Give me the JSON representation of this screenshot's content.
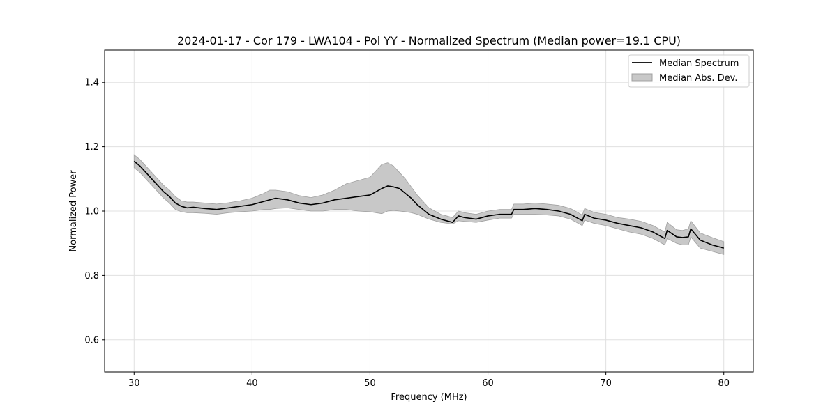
{
  "chart_data": {
    "type": "line",
    "title": "2024-01-17 - Cor 179 - LWA104 - Pol YY - Normalized Spectrum (Median power=19.1 CPU)",
    "xlabel": "Frequency (MHz)",
    "ylabel": "Normalized Power",
    "xlim": [
      27.5,
      82.5
    ],
    "ylim": [
      0.5,
      1.5
    ],
    "grid": true,
    "legend_position": "top-right",
    "x_ticks": [
      30,
      40,
      50,
      60,
      70,
      80
    ],
    "x_tick_labels": [
      "30",
      "40",
      "50",
      "60",
      "70",
      "80"
    ],
    "y_ticks": [
      0.6,
      0.8,
      1.0,
      1.2,
      1.4
    ],
    "y_tick_labels": [
      "0.6",
      "0.8",
      "1.0",
      "1.2",
      "1.4"
    ],
    "colors": {
      "median": "#000000",
      "band_fill": "#c8c8c8",
      "band_edge": "#a0a0a0",
      "grid": "#e0e0e0"
    },
    "series": [
      {
        "name": "Median Spectrum",
        "kind": "line",
        "x": [
          30,
          30.5,
          31,
          31.5,
          32,
          32.5,
          33,
          33.5,
          34,
          34.5,
          35,
          36,
          37,
          38,
          39,
          40,
          41,
          41.5,
          42,
          43,
          44,
          45,
          46,
          47,
          48,
          49,
          50,
          50.5,
          51,
          51.5,
          52,
          52.5,
          53,
          53.5,
          54,
          55,
          56,
          57,
          57.5,
          58,
          59,
          60,
          61,
          62,
          62.2,
          63,
          64,
          65,
          66,
          67,
          68,
          68.2,
          69,
          70,
          71,
          72,
          73,
          74,
          75,
          75.2,
          76,
          76.5,
          77,
          77.2,
          78,
          79,
          80
        ],
        "values": [
          1.155,
          1.14,
          1.12,
          1.1,
          1.08,
          1.06,
          1.045,
          1.025,
          1.015,
          1.01,
          1.012,
          1.008,
          1.005,
          1.01,
          1.015,
          1.02,
          1.03,
          1.035,
          1.04,
          1.035,
          1.025,
          1.02,
          1.025,
          1.035,
          1.04,
          1.045,
          1.05,
          1.06,
          1.07,
          1.078,
          1.075,
          1.07,
          1.055,
          1.04,
          1.02,
          0.99,
          0.975,
          0.965,
          0.985,
          0.98,
          0.975,
          0.985,
          0.99,
          0.99,
          1.005,
          1.005,
          1.008,
          1.005,
          1.0,
          0.99,
          0.97,
          0.99,
          0.978,
          0.972,
          0.962,
          0.955,
          0.948,
          0.935,
          0.915,
          0.94,
          0.92,
          0.918,
          0.92,
          0.945,
          0.91,
          0.895,
          0.885
        ]
      },
      {
        "name": "Median Abs. Dev.",
        "kind": "band",
        "x": [
          30,
          30.5,
          31,
          31.5,
          32,
          32.5,
          33,
          33.5,
          34,
          34.5,
          35,
          36,
          37,
          38,
          39,
          40,
          41,
          41.5,
          42,
          43,
          44,
          45,
          46,
          47,
          48,
          49,
          50,
          50.5,
          51,
          51.5,
          52,
          52.5,
          53,
          53.5,
          54,
          55,
          56,
          57,
          57.5,
          58,
          59,
          60,
          61,
          62,
          62.2,
          63,
          64,
          65,
          66,
          67,
          68,
          68.2,
          69,
          70,
          71,
          72,
          73,
          74,
          75,
          75.2,
          76,
          76.5,
          77,
          77.2,
          78,
          79,
          80
        ],
        "lower": [
          1.135,
          1.12,
          1.1,
          1.08,
          1.06,
          1.04,
          1.025,
          1.005,
          0.998,
          0.995,
          0.995,
          0.993,
          0.99,
          0.995,
          0.998,
          1.0,
          1.005,
          1.005,
          1.008,
          1.01,
          1.005,
          1.0,
          1.0,
          1.005,
          1.005,
          1.0,
          0.998,
          0.995,
          0.992,
          1.0,
          1.002,
          1.0,
          0.998,
          0.995,
          0.99,
          0.975,
          0.965,
          0.96,
          0.97,
          0.968,
          0.965,
          0.972,
          0.978,
          0.978,
          0.99,
          0.99,
          0.99,
          0.988,
          0.985,
          0.975,
          0.955,
          0.972,
          0.962,
          0.955,
          0.945,
          0.935,
          0.928,
          0.915,
          0.895,
          0.915,
          0.9,
          0.895,
          0.895,
          0.92,
          0.885,
          0.875,
          0.865
        ],
        "upper": [
          1.175,
          1.16,
          1.14,
          1.12,
          1.1,
          1.08,
          1.065,
          1.045,
          1.032,
          1.028,
          1.028,
          1.025,
          1.022,
          1.026,
          1.032,
          1.04,
          1.055,
          1.065,
          1.065,
          1.06,
          1.048,
          1.042,
          1.05,
          1.065,
          1.085,
          1.095,
          1.105,
          1.125,
          1.145,
          1.15,
          1.14,
          1.12,
          1.1,
          1.075,
          1.05,
          1.01,
          0.99,
          0.98,
          1.0,
          0.995,
          0.99,
          1.0,
          1.005,
          1.005,
          1.022,
          1.022,
          1.025,
          1.022,
          1.018,
          1.008,
          0.988,
          1.008,
          0.996,
          0.99,
          0.98,
          0.975,
          0.968,
          0.955,
          0.935,
          0.965,
          0.942,
          0.94,
          0.945,
          0.97,
          0.932,
          0.918,
          0.905
        ]
      }
    ]
  }
}
